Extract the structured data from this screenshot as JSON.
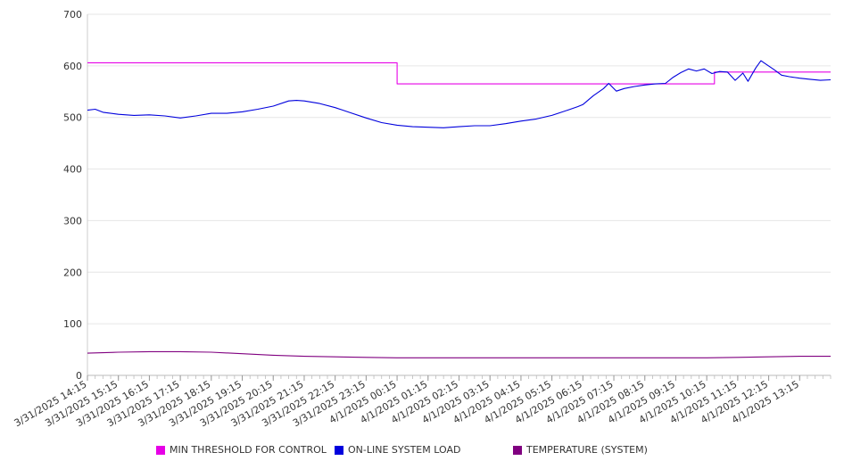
{
  "chart_data": {
    "type": "line",
    "title": "",
    "xlabel": "",
    "ylabel": "",
    "ylim": [
      0,
      700
    ],
    "yticks": [
      0,
      100,
      200,
      300,
      400,
      500,
      600,
      700
    ],
    "ytick_labels": [
      "0",
      "100",
      "200",
      "300",
      "400",
      "500",
      "600",
      "700"
    ],
    "grid": "horizontal",
    "legend_position": "bottom",
    "xtick_labels": [
      "3/31/2025 14:15",
      "3/31/2025 15:15",
      "3/31/2025 16:15",
      "3/31/2025 17:15",
      "3/31/2025 18:15",
      "3/31/2025 19:15",
      "3/31/2025 20:15",
      "3/31/2025 21:15",
      "3/31/2025 22:15",
      "3/31/2025 23:15",
      "4/1/2025 00:15",
      "4/1/2025 01:15",
      "4/1/2025 02:15",
      "4/1/2025 03:15",
      "4/1/2025 04:15",
      "4/1/2025 05:15",
      "4/1/2025 06:15",
      "4/1/2025 07:15",
      "4/1/2025 08:15",
      "4/1/2025 09:15",
      "4/1/2025 10:15",
      "4/1/2025 11:15",
      "4/1/2025 12:15",
      "4/1/2025 13:15"
    ],
    "x_range": [
      "3/31/2025 14:15",
      "4/1/2025 14:15"
    ],
    "series": [
      {
        "name": "MIN THRESHOLD FOR CONTROL",
        "color": "#e600e6",
        "interpolation": "step",
        "points": [
          [
            "3/31/2025 14:15",
            606
          ],
          [
            "4/1/2025 00:15",
            606
          ],
          [
            "4/1/2025 00:15",
            565
          ],
          [
            "4/1/2025 10:30",
            565
          ],
          [
            "4/1/2025 10:30",
            588
          ],
          [
            "4/1/2025 14:15",
            588
          ]
        ]
      },
      {
        "name": "ON-LINE SYSTEM LOAD",
        "color": "#0000dd",
        "interpolation": "linear",
        "points": [
          [
            "3/31/2025 14:15",
            514
          ],
          [
            "3/31/2025 14:30",
            516
          ],
          [
            "3/31/2025 14:45",
            510
          ],
          [
            "3/31/2025 15:15",
            506
          ],
          [
            "3/31/2025 15:45",
            504
          ],
          [
            "3/31/2025 16:15",
            505
          ],
          [
            "3/31/2025 16:45",
            503
          ],
          [
            "3/31/2025 17:15",
            499
          ],
          [
            "3/31/2025 17:45",
            503
          ],
          [
            "3/31/2025 18:15",
            508
          ],
          [
            "3/31/2025 18:45",
            508
          ],
          [
            "3/31/2025 19:15",
            511
          ],
          [
            "3/31/2025 19:45",
            516
          ],
          [
            "3/31/2025 20:15",
            522
          ],
          [
            "3/31/2025 20:45",
            532
          ],
          [
            "3/31/2025 21:00",
            533
          ],
          [
            "3/31/2025 21:15",
            532
          ],
          [
            "3/31/2025 21:45",
            527
          ],
          [
            "3/31/2025 22:15",
            519
          ],
          [
            "3/31/2025 22:45",
            509
          ],
          [
            "3/31/2025 23:15",
            499
          ],
          [
            "3/31/2025 23:45",
            490
          ],
          [
            "4/1/2025 00:15",
            485
          ],
          [
            "4/1/2025 00:45",
            482
          ],
          [
            "4/1/2025 01:15",
            481
          ],
          [
            "4/1/2025 01:45",
            480
          ],
          [
            "4/1/2025 02:15",
            482
          ],
          [
            "4/1/2025 02:45",
            484
          ],
          [
            "4/1/2025 03:15",
            484
          ],
          [
            "4/1/2025 03:45",
            488
          ],
          [
            "4/1/2025 04:15",
            493
          ],
          [
            "4/1/2025 04:45",
            497
          ],
          [
            "4/1/2025 05:15",
            504
          ],
          [
            "4/1/2025 05:45",
            514
          ],
          [
            "4/1/2025 06:05",
            521
          ],
          [
            "4/1/2025 06:15",
            525
          ],
          [
            "4/1/2025 06:35",
            542
          ],
          [
            "4/1/2025 06:55",
            556
          ],
          [
            "4/1/2025 07:05",
            566
          ],
          [
            "4/1/2025 07:20",
            551
          ],
          [
            "4/1/2025 07:35",
            556
          ],
          [
            "4/1/2025 07:55",
            560
          ],
          [
            "4/1/2025 08:15",
            563
          ],
          [
            "4/1/2025 08:35",
            565
          ],
          [
            "4/1/2025 08:55",
            566
          ],
          [
            "4/1/2025 09:10",
            578
          ],
          [
            "4/1/2025 09:25",
            587
          ],
          [
            "4/1/2025 09:40",
            594
          ],
          [
            "4/1/2025 09:55",
            590
          ],
          [
            "4/1/2025 10:10",
            594
          ],
          [
            "4/1/2025 10:25",
            585
          ],
          [
            "4/1/2025 10:40",
            589
          ],
          [
            "4/1/2025 10:55",
            588
          ],
          [
            "4/1/2025 11:10",
            572
          ],
          [
            "4/1/2025 11:25",
            586
          ],
          [
            "4/1/2025 11:35",
            570
          ],
          [
            "4/1/2025 11:50",
            596
          ],
          [
            "4/1/2025 12:00",
            610
          ],
          [
            "4/1/2025 12:10",
            603
          ],
          [
            "4/1/2025 12:25",
            593
          ],
          [
            "4/1/2025 12:40",
            582
          ],
          [
            "4/1/2025 12:55",
            579
          ],
          [
            "4/1/2025 13:15",
            576
          ],
          [
            "4/1/2025 13:35",
            574
          ],
          [
            "4/1/2025 13:55",
            572
          ],
          [
            "4/1/2025 14:15",
            573
          ]
        ]
      },
      {
        "name": "TEMPERATURE (SYSTEM)",
        "color": "#800080",
        "interpolation": "linear",
        "points": [
          [
            "3/31/2025 14:15",
            43
          ],
          [
            "3/31/2025 15:15",
            45
          ],
          [
            "3/31/2025 16:15",
            46
          ],
          [
            "3/31/2025 17:15",
            46
          ],
          [
            "3/31/2025 18:15",
            45
          ],
          [
            "3/31/2025 19:15",
            42
          ],
          [
            "3/31/2025 20:15",
            39
          ],
          [
            "3/31/2025 21:15",
            37
          ],
          [
            "3/31/2025 22:15",
            36
          ],
          [
            "3/31/2025 23:15",
            35
          ],
          [
            "4/1/2025 00:15",
            34
          ],
          [
            "4/1/2025 02:15",
            34
          ],
          [
            "4/1/2025 04:15",
            34
          ],
          [
            "4/1/2025 06:15",
            34
          ],
          [
            "4/1/2025 08:15",
            34
          ],
          [
            "4/1/2025 10:15",
            34
          ],
          [
            "4/1/2025 11:15",
            35
          ],
          [
            "4/1/2025 12:15",
            36
          ],
          [
            "4/1/2025 13:15",
            37
          ],
          [
            "4/1/2025 14:15",
            37
          ]
        ]
      }
    ]
  }
}
